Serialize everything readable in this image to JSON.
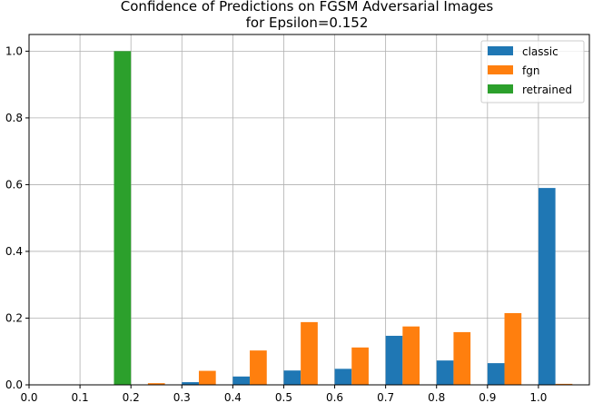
{
  "chart_data": {
    "type": "bar",
    "title": "Confidence of Predictions on FGSM Adversarial Images",
    "subtitle": "for Epsilon=0.152",
    "xlabel": "",
    "ylabel": "",
    "xlim": [
      0.0,
      1.1
    ],
    "ylim": [
      0.0,
      1.05
    ],
    "x_ticks": [
      0.0,
      0.1,
      0.2,
      0.3,
      0.4,
      0.5,
      0.6,
      0.7,
      0.8,
      0.9,
      1.0
    ],
    "x_tick_labels": [
      "0.0",
      "0.1",
      "0.2",
      "0.3",
      "0.4",
      "0.5",
      "0.6",
      "0.7",
      "0.8",
      "0.9",
      "1.0"
    ],
    "y_ticks": [
      0.0,
      0.2,
      0.4,
      0.6,
      0.8,
      1.0
    ],
    "y_tick_labels": [
      "0.0",
      "0.2",
      "0.4",
      "0.6",
      "0.8",
      "1.0"
    ],
    "grid": true,
    "legend_position": "top-right",
    "bins": [
      0.05,
      0.15,
      0.25,
      0.35,
      0.45,
      0.55,
      0.65,
      0.75,
      0.85,
      0.95,
      1.05
    ],
    "series": [
      {
        "name": "classic",
        "color": "#1f77b4",
        "values": [
          0.0,
          0.0,
          0.0,
          0.008,
          0.025,
          0.043,
          0.048,
          0.147,
          0.073,
          0.065,
          0.59
        ]
      },
      {
        "name": "fgn",
        "color": "#ff7f0e",
        "values": [
          0.0,
          0.0,
          0.005,
          0.042,
          0.103,
          0.188,
          0.112,
          0.175,
          0.158,
          0.215,
          0.003
        ]
      },
      {
        "name": "retrained",
        "color": "#2ca02c",
        "values": [
          0.0,
          1.0,
          0.0,
          0.0,
          0.0,
          0.0,
          0.0,
          0.0,
          0.0,
          0.0,
          0.0
        ]
      }
    ]
  }
}
